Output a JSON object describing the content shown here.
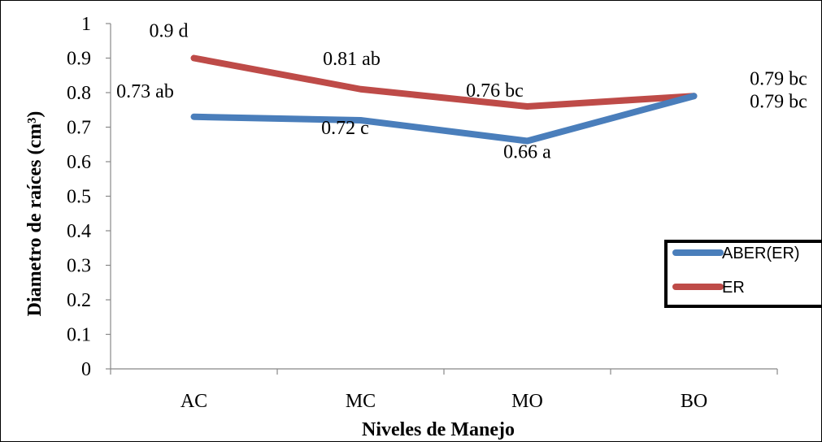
{
  "chart_data": {
    "type": "line",
    "categories": [
      "AC",
      "MC",
      "MO",
      "BO"
    ],
    "series": [
      {
        "name": "ABER(ER)",
        "values": [
          0.73,
          0.72,
          0.66,
          0.79
        ],
        "labels": [
          "0.73 ab",
          "0.72 c",
          "0.66 a",
          "0.79 bc"
        ],
        "color": "#4a7ebb"
      },
      {
        "name": "ER",
        "values": [
          0.9,
          0.81,
          0.76,
          0.79
        ],
        "labels": [
          "0.9 d",
          "0.81 ab",
          "0.76 bc",
          "0.79 bc"
        ],
        "color": "#be4b48"
      }
    ],
    "xlabel": "Niveles de Manejo",
    "ylabel": "Diametro de raíces (cm³)",
    "ylim": [
      0,
      1
    ],
    "yticks": [
      "0",
      "0.1",
      "0.2",
      "0.3",
      "0.4",
      "0.5",
      "0.6",
      "0.7",
      "0.8",
      "0.9",
      "1"
    ],
    "grid": false,
    "legend": "right"
  }
}
